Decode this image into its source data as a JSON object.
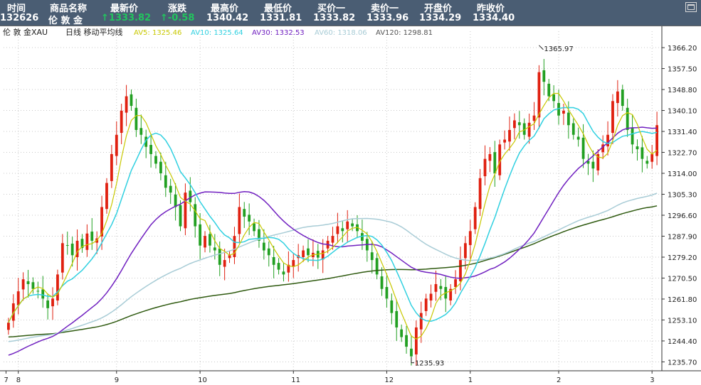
{
  "header": {
    "labels": [
      "时间",
      "商品名称",
      "最新价",
      "涨跌",
      "最高价",
      "最低价",
      "买价一",
      "卖价一",
      "开盘价",
      "昨收价"
    ],
    "time": "132626",
    "name": "伦 敦 金",
    "last": "↑1333.82",
    "change": "↑-0.58",
    "high": "1340.42",
    "low": "1331.81",
    "bid": "1333.82",
    "ask": "1333.96",
    "open": "1334.29",
    "prev_close": "1334.40"
  },
  "legend": {
    "symbol": "伦 敦 金XAU",
    "period": "日线 移动平均线",
    "ma5": "AV5: 1325.46",
    "ma10": "AV10: 1325.64",
    "ma30": "AV30: 1332.53",
    "ma60": "AV60: 1318.06",
    "ma120": "AV120: 1298.81"
  },
  "colors": {
    "up": "#e02010",
    "down": "#22a022",
    "ma5": "#c8c800",
    "ma10": "#30d0e0",
    "ma30": "#7020c0",
    "ma60": "#a8ccd6",
    "ma120": "#2f5a10"
  },
  "chart_data": {
    "type": "candlestick",
    "ylim": [
      1232,
      1373
    ],
    "y_ticks": [
      "1366.20",
      "1357.50",
      "1348.80",
      "1340.10",
      "1331.40",
      "1322.70",
      "1314.00",
      "1305.30",
      "1296.60",
      "1287.90",
      "1279.20",
      "1270.50",
      "1261.80",
      "1253.10",
      "1244.40",
      "1235.70"
    ],
    "x_ticks": [
      {
        "label": "7",
        "index": -0.5
      },
      {
        "label": "8",
        "index": 2
      },
      {
        "label": "9",
        "index": 22
      },
      {
        "label": "10",
        "index": 39
      },
      {
        "label": "11",
        "index": 58
      },
      {
        "label": "12",
        "index": 77
      },
      {
        "label": "1",
        "index": 94
      },
      {
        "label": "2",
        "index": 112
      },
      {
        "label": "3",
        "index": 131
      }
    ],
    "annotations": [
      {
        "text": "1365.97",
        "index": 108,
        "value": 1365.97,
        "kind": "high"
      },
      {
        "text": "1235.93",
        "index": 82,
        "value": 1235.93,
        "kind": "low"
      }
    ],
    "closes": [
      1252,
      1260,
      1265,
      1270,
      1268,
      1266,
      1265,
      1262,
      1258,
      1262,
      1272,
      1285,
      1284,
      1280,
      1286,
      1283,
      1289,
      1286,
      1287,
      1300,
      1310,
      1322,
      1330,
      1340,
      1346,
      1342,
      1332,
      1330,
      1325,
      1322,
      1318,
      1314,
      1308,
      1306,
      1300,
      1292,
      1306,
      1302,
      1292,
      1284,
      1288,
      1284,
      1282,
      1276,
      1278,
      1280,
      1288,
      1300,
      1296,
      1294,
      1290,
      1286,
      1282,
      1280,
      1276,
      1274,
      1272,
      1276,
      1278,
      1280,
      1282,
      1280,
      1281,
      1279,
      1282,
      1286,
      1288,
      1292,
      1290,
      1294,
      1292,
      1290,
      1286,
      1282,
      1278,
      1272,
      1266,
      1262,
      1256,
      1250,
      1246,
      1242,
      1238,
      1250,
      1256,
      1262,
      1264,
      1268,
      1266,
      1262,
      1266,
      1270,
      1278,
      1285,
      1290,
      1300,
      1312,
      1320,
      1322,
      1314,
      1326,
      1328,
      1332,
      1336,
      1334,
      1330,
      1335,
      1338,
      1356,
      1352,
      1346,
      1344,
      1338,
      1340,
      1334,
      1330,
      1328,
      1320,
      1318,
      1316,
      1322,
      1326,
      1330,
      1344,
      1348,
      1342,
      1332,
      1326,
      1324,
      1320,
      1318,
      1322,
      1334
    ]
  }
}
